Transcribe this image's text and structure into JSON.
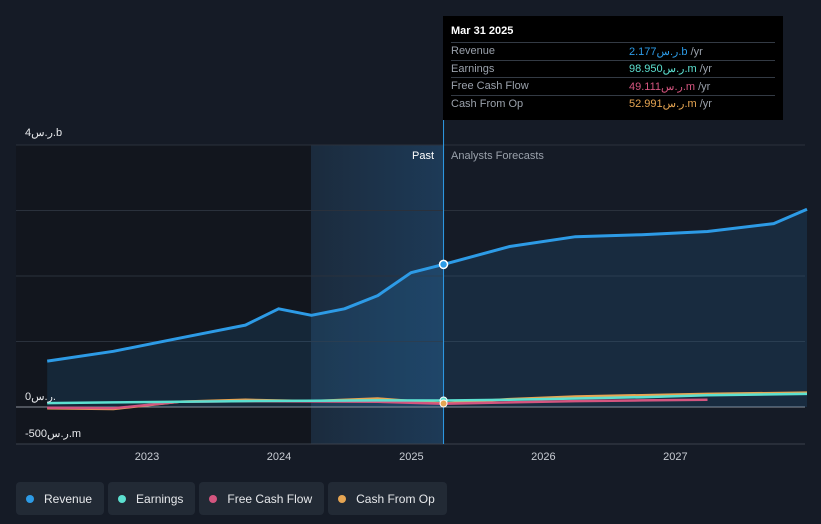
{
  "chart_data": {
    "type": "line",
    "x_axis": {
      "ticks": [
        "2023",
        "2024",
        "2025",
        "2026",
        "2027"
      ]
    },
    "y_axis": {
      "top_label": "4ر.س.b",
      "zero_label": "0ر.س.",
      "bottom_label": "-500ر.س.m",
      "ylim": [
        -500,
        4000
      ],
      "unit": "ر.س.m"
    },
    "sections": {
      "past_label": "Past",
      "forecast_label": "Analysts Forecasts"
    },
    "colors": {
      "Revenue": "#2d9be6",
      "Earnings": "#5ce0d0",
      "Free Cash Flow": "#d4557f",
      "Cash From Op": "#e6a552",
      "background": "#151b26"
    },
    "series": [
      {
        "name": "Revenue",
        "x": [
          "2022-03-31",
          "2022-09-30",
          "2023-03-31",
          "2023-06-30",
          "2023-09-30",
          "2023-12-31",
          "2024-03-31",
          "2024-06-30",
          "2024-09-30",
          "2024-12-31",
          "2025-03-31",
          "2025-09-30",
          "2026-03-31",
          "2026-09-30",
          "2027-03-31",
          "2027-09-30",
          "2027-12-31"
        ],
        "values": [
          700,
          850,
          1050,
          1150,
          1250,
          1500,
          1400,
          1500,
          1700,
          2050,
          2177,
          2450,
          2600,
          2630,
          2680,
          2800,
          3020
        ]
      },
      {
        "name": "Earnings",
        "x": [
          "2022-03-31",
          "2022-09-30",
          "2023-03-31",
          "2023-09-30",
          "2024-03-31",
          "2024-09-30",
          "2025-03-31",
          "2025-09-30",
          "2026-03-31",
          "2026-09-30",
          "2027-03-31",
          "2027-12-31"
        ],
        "values": [
          60,
          70,
          80,
          90,
          95,
          100,
          99,
          110,
          130,
          150,
          180,
          200
        ]
      },
      {
        "name": "Free Cash Flow",
        "x": [
          "2022-03-31",
          "2022-09-30",
          "2023-03-31",
          "2023-09-30",
          "2024-03-31",
          "2024-09-30",
          "2025-03-31",
          "2025-09-30",
          "2026-03-31",
          "2026-09-30",
          "2027-03-31"
        ],
        "values": [
          -10,
          -20,
          80,
          90,
          85,
          80,
          49,
          70,
          90,
          100,
          110
        ]
      },
      {
        "name": "Cash From Op",
        "x": [
          "2022-03-31",
          "2022-09-30",
          "2023-03-31",
          "2023-09-30",
          "2024-03-31",
          "2024-09-30",
          "2025-03-31",
          "2025-09-30",
          "2026-03-31",
          "2026-09-30",
          "2027-03-31",
          "2027-12-31"
        ],
        "values": [
          -20,
          -30,
          80,
          110,
          90,
          130,
          53,
          120,
          160,
          180,
          200,
          220
        ]
      }
    ],
    "highlight": {
      "date": "2025-03-31",
      "revenue": 2177,
      "earnings": 99,
      "cash_from_op": 53
    }
  },
  "tooltip": {
    "date": "Mar 31 2025",
    "rows": [
      {
        "label": "Revenue",
        "value": "2.177ر.س.b",
        "unit": "/yr",
        "color": "#2d9be6"
      },
      {
        "label": "Earnings",
        "value": "98.950ر.س.m",
        "unit": "/yr",
        "color": "#5ce0d0"
      },
      {
        "label": "Free Cash Flow",
        "value": "49.111ر.س.m",
        "unit": "/yr",
        "color": "#d4557f"
      },
      {
        "label": "Cash From Op",
        "value": "52.991ر.س.m",
        "unit": "/yr",
        "color": "#e6a552"
      }
    ]
  },
  "legend": [
    {
      "label": "Revenue",
      "color": "#2d9be6"
    },
    {
      "label": "Earnings",
      "color": "#5ce0d0"
    },
    {
      "label": "Free Cash Flow",
      "color": "#d4557f"
    },
    {
      "label": "Cash From Op",
      "color": "#e6a552"
    }
  ]
}
